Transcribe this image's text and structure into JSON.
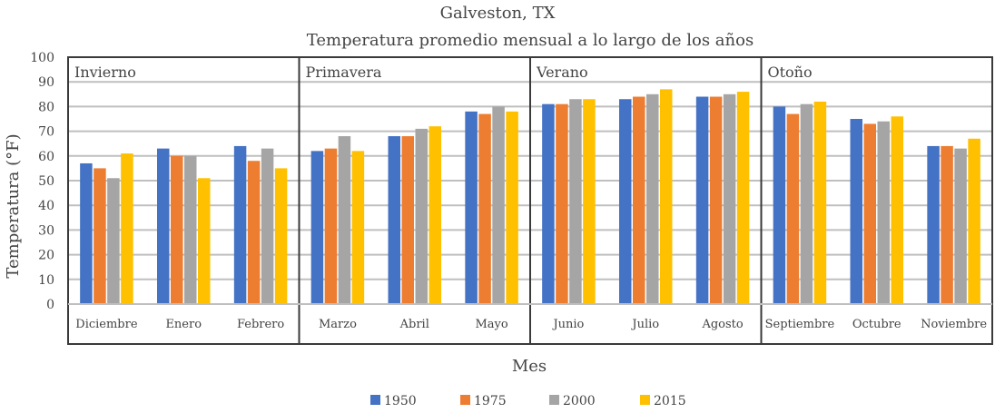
{
  "chart_data": {
    "type": "bar",
    "title": "Galveston, TX",
    "subtitle": "Temperatura promedio mensual a lo largo de los años",
    "xlabel": "Mes",
    "ylabel": "Temperatura (°F)",
    "ylim": [
      0,
      100
    ],
    "yticks": [
      "0",
      "10",
      "20",
      "30",
      "40",
      "50",
      "60",
      "70",
      "80",
      "90",
      "100"
    ],
    "grid": true,
    "legend_position": "bottom",
    "groups": [
      {
        "label": "Invierno",
        "categories": [
          "Diciembre",
          "Enero",
          "Febrero"
        ]
      },
      {
        "label": "Primavera",
        "categories": [
          "Marzo",
          "Abril",
          "Mayo"
        ]
      },
      {
        "label": "Verano",
        "categories": [
          "Junio",
          "Julio",
          "Agosto"
        ]
      },
      {
        "label": "Otoño",
        "categories": [
          "Septiembre",
          "Octubre",
          "Noviembre"
        ]
      }
    ],
    "categories": [
      "Diciembre",
      "Enero",
      "Febrero",
      "Marzo",
      "Abril",
      "Mayo",
      "Junio",
      "Julio",
      "Agosto",
      "Septiembre",
      "Octubre",
      "Noviembre"
    ],
    "series": [
      {
        "name": "1950",
        "color": "#4472C4",
        "values": [
          57,
          63,
          64,
          62,
          68,
          78,
          81,
          83,
          84,
          80,
          75,
          64
        ]
      },
      {
        "name": "1975",
        "color": "#ED7D31",
        "values": [
          55,
          60,
          58,
          63,
          68,
          77,
          81,
          84,
          84,
          77,
          73,
          64
        ]
      },
      {
        "name": "2000",
        "color": "#A5A5A5",
        "values": [
          51,
          60,
          63,
          68,
          71,
          80,
          83,
          85,
          85,
          81,
          74,
          63
        ]
      },
      {
        "name": "2015",
        "color": "#FFC000",
        "values": [
          61,
          51,
          55,
          62,
          72,
          78,
          83,
          87,
          86,
          82,
          76,
          67
        ]
      }
    ]
  }
}
